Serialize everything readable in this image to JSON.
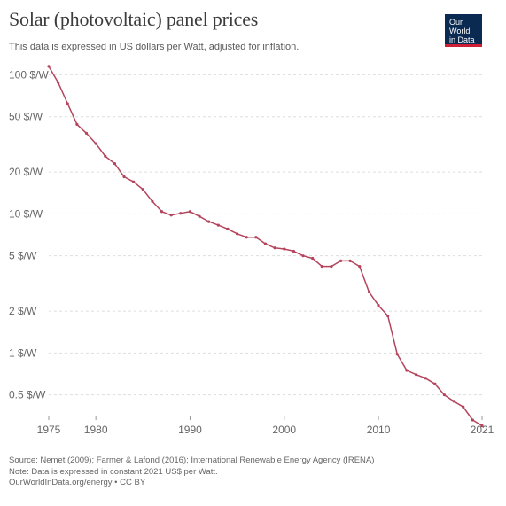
{
  "title": "Solar (photovoltaic) panel prices",
  "subtitle": "This data is expressed in US dollars per Watt, adjusted for inflation.",
  "logo": {
    "line1": "Our World",
    "line2": "in Data"
  },
  "colors": {
    "line": "#b4445c",
    "logo_bg": "#0b2a52",
    "logo_accent": "#cf1f37",
    "grid": "#dddddd"
  },
  "footer": {
    "source": "Source: Nemet (2009); Farmer & Lafond (2016); International Renewable Energy Agency (IRENA)",
    "note": "Note: Data is expressed in constant 2021 US$ per Watt.",
    "credit": "OurWorldInData.org/energy • CC BY"
  },
  "chart_data": {
    "type": "line",
    "title": "Solar (photovoltaic) panel prices",
    "y_scale": "log",
    "grid": true,
    "xlim": [
      1975,
      2021
    ],
    "ylim": [
      0.35,
      120
    ],
    "y_ticks": [
      {
        "value": 100,
        "label": "100 $/W"
      },
      {
        "value": 50,
        "label": "50 $/W"
      },
      {
        "value": 20,
        "label": "20 $/W"
      },
      {
        "value": 10,
        "label": "10 $/W"
      },
      {
        "value": 5,
        "label": "5 $/W"
      },
      {
        "value": 2,
        "label": "2 $/W"
      },
      {
        "value": 1,
        "label": "1 $/W"
      },
      {
        "value": 0.5,
        "label": "0.5 $/W"
      }
    ],
    "x_ticks": [
      {
        "value": 1975,
        "label": "1975"
      },
      {
        "value": 1980,
        "label": "1980"
      },
      {
        "value": 1990,
        "label": "1990"
      },
      {
        "value": 2000,
        "label": "2000"
      },
      {
        "value": 2010,
        "label": "2010"
      },
      {
        "value": 2021,
        "label": "2021"
      }
    ],
    "series": [
      {
        "x": [
          1975,
          1976,
          1977,
          1978,
          1979,
          1980,
          1981,
          1982,
          1983,
          1984,
          1985,
          1986,
          1987,
          1988,
          1989,
          1990,
          1991,
          1992,
          1993,
          1994,
          1995,
          1996,
          1997,
          1998,
          1999,
          2000,
          2001,
          2002,
          2003,
          2004,
          2005,
          2006,
          2007,
          2008,
          2009,
          2010,
          2011,
          2012,
          2013,
          2014,
          2015,
          2016,
          2017,
          2018,
          2019,
          2020,
          2021
        ],
        "y": [
          115,
          88,
          62,
          44,
          38,
          32,
          26,
          23,
          18.5,
          17,
          15,
          12.3,
          10.4,
          9.8,
          10.1,
          10.4,
          9.6,
          8.8,
          8.3,
          7.8,
          7.2,
          6.8,
          6.8,
          6.1,
          5.7,
          5.6,
          5.4,
          5.0,
          4.8,
          4.2,
          4.2,
          4.6,
          4.6,
          4.2,
          2.75,
          2.2,
          1.85,
          0.98,
          0.75,
          0.7,
          0.66,
          0.6,
          0.5,
          0.45,
          0.41,
          0.33,
          0.3
        ]
      }
    ]
  }
}
